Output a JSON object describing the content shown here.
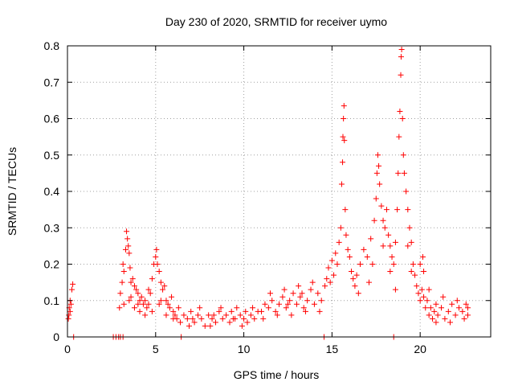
{
  "chart_data": {
    "type": "scatter",
    "title": "Day 230 of 2020, SRMTID for receiver uymo",
    "xlabel": "GPS time / hours",
    "ylabel": "SRMTID / TECUs",
    "xlim": [
      0,
      24
    ],
    "ylim": [
      0,
      0.8
    ],
    "xticks": [
      0,
      5,
      10,
      15,
      20
    ],
    "yticks": [
      0,
      0.1,
      0.2,
      0.3,
      0.4,
      0.5,
      0.6,
      0.7,
      0.8
    ],
    "xtick_labels": [
      "0",
      "5",
      "10",
      "15",
      "20"
    ],
    "ytick_labels": [
      "0",
      "0.1",
      "0.2",
      "0.3",
      "0.4",
      "0.5",
      "0.6",
      "0.7",
      "0.8"
    ],
    "grid": true,
    "marker": "+",
    "color": "#ff0000",
    "series": [
      {
        "name": "SRMTID",
        "points": [
          [
            0.05,
            0.05
          ],
          [
            0.1,
            0.08
          ],
          [
            0.15,
            0.1
          ],
          [
            0.2,
            0.09
          ],
          [
            0.25,
            0.13
          ],
          [
            0.3,
            0.145
          ],
          [
            0.15,
            0.07
          ],
          [
            0.08,
            0.06
          ],
          [
            0.35,
            0.0
          ],
          [
            2.6,
            0.0
          ],
          [
            2.75,
            0.0
          ],
          [
            2.9,
            0.0
          ],
          [
            3.0,
            0.0
          ],
          [
            3.15,
            0.0
          ],
          [
            6.45,
            0.0
          ],
          [
            14.55,
            0.0
          ],
          [
            18.5,
            0.0
          ],
          [
            2.95,
            0.08
          ],
          [
            3.0,
            0.12
          ],
          [
            3.1,
            0.15
          ],
          [
            3.15,
            0.2
          ],
          [
            3.2,
            0.18
          ],
          [
            3.3,
            0.24
          ],
          [
            3.35,
            0.29
          ],
          [
            3.4,
            0.27
          ],
          [
            3.45,
            0.25
          ],
          [
            3.5,
            0.23
          ],
          [
            3.55,
            0.19
          ],
          [
            3.6,
            0.15
          ],
          [
            3.7,
            0.16
          ],
          [
            3.8,
            0.14
          ],
          [
            3.9,
            0.13
          ],
          [
            4.0,
            0.12
          ],
          [
            4.1,
            0.1
          ],
          [
            4.2,
            0.11
          ],
          [
            4.3,
            0.09
          ],
          [
            4.4,
            0.1
          ],
          [
            4.5,
            0.08
          ],
          [
            4.6,
            0.09
          ],
          [
            4.7,
            0.12
          ],
          [
            4.8,
            0.16
          ],
          [
            4.9,
            0.2
          ],
          [
            5.0,
            0.22
          ],
          [
            5.05,
            0.24
          ],
          [
            5.1,
            0.2
          ],
          [
            5.2,
            0.18
          ],
          [
            5.3,
            0.15
          ],
          [
            5.4,
            0.13
          ],
          [
            5.5,
            0.14
          ],
          [
            5.6,
            0.1
          ],
          [
            5.7,
            0.09
          ],
          [
            5.8,
            0.08
          ],
          [
            5.9,
            0.11
          ],
          [
            6.0,
            0.07
          ],
          [
            6.1,
            0.06
          ],
          [
            3.2,
            0.09
          ],
          [
            3.5,
            0.1
          ],
          [
            3.8,
            0.08
          ],
          [
            4.1,
            0.07
          ],
          [
            4.4,
            0.06
          ],
          [
            4.8,
            0.07
          ],
          [
            5.2,
            0.09
          ],
          [
            5.6,
            0.06
          ],
          [
            6.0,
            0.05
          ],
          [
            3.6,
            0.11
          ],
          [
            4.0,
            0.09
          ],
          [
            4.6,
            0.13
          ],
          [
            5.3,
            0.1
          ],
          [
            6.2,
            0.05
          ],
          [
            6.4,
            0.04
          ],
          [
            6.6,
            0.06
          ],
          [
            6.8,
            0.05
          ],
          [
            7.0,
            0.07
          ],
          [
            7.2,
            0.04
          ],
          [
            7.4,
            0.06
          ],
          [
            7.6,
            0.05
          ],
          [
            7.8,
            0.03
          ],
          [
            8.0,
            0.06
          ],
          [
            8.2,
            0.05
          ],
          [
            8.4,
            0.04
          ],
          [
            8.6,
            0.07
          ],
          [
            8.8,
            0.05
          ],
          [
            9.0,
            0.06
          ],
          [
            9.2,
            0.04
          ],
          [
            9.4,
            0.05
          ],
          [
            9.6,
            0.08
          ],
          [
            9.8,
            0.06
          ],
          [
            10.0,
            0.05
          ],
          [
            10.2,
            0.04
          ],
          [
            10.4,
            0.06
          ],
          [
            10.6,
            0.05
          ],
          [
            10.8,
            0.07
          ],
          [
            6.3,
            0.08
          ],
          [
            6.9,
            0.03
          ],
          [
            7.5,
            0.08
          ],
          [
            8.1,
            0.03
          ],
          [
            8.7,
            0.08
          ],
          [
            9.3,
            0.07
          ],
          [
            9.9,
            0.03
          ],
          [
            10.5,
            0.08
          ],
          [
            7.1,
            0.05
          ],
          [
            8.3,
            0.06
          ],
          [
            9.5,
            0.05
          ],
          [
            10.1,
            0.07
          ],
          [
            11.0,
            0.07
          ],
          [
            11.2,
            0.09
          ],
          [
            11.4,
            0.08
          ],
          [
            11.6,
            0.1
          ],
          [
            11.8,
            0.07
          ],
          [
            12.0,
            0.09
          ],
          [
            12.2,
            0.11
          ],
          [
            12.4,
            0.08
          ],
          [
            12.6,
            0.1
          ],
          [
            12.8,
            0.12
          ],
          [
            13.0,
            0.09
          ],
          [
            13.2,
            0.11
          ],
          [
            13.4,
            0.08
          ],
          [
            13.6,
            0.1
          ],
          [
            13.8,
            0.13
          ],
          [
            14.0,
            0.09
          ],
          [
            14.2,
            0.12
          ],
          [
            14.4,
            0.1
          ],
          [
            14.6,
            0.14
          ],
          [
            11.1,
            0.05
          ],
          [
            11.5,
            0.12
          ],
          [
            11.9,
            0.06
          ],
          [
            12.3,
            0.13
          ],
          [
            12.7,
            0.06
          ],
          [
            13.1,
            0.14
          ],
          [
            13.5,
            0.07
          ],
          [
            13.9,
            0.15
          ],
          [
            14.3,
            0.07
          ],
          [
            12.5,
            0.09
          ],
          [
            13.3,
            0.12
          ],
          [
            14.7,
            0.16
          ],
          [
            14.8,
            0.19
          ],
          [
            14.9,
            0.15
          ],
          [
            15.0,
            0.21
          ],
          [
            15.1,
            0.17
          ],
          [
            15.2,
            0.23
          ],
          [
            15.3,
            0.2
          ],
          [
            15.4,
            0.26
          ],
          [
            15.5,
            0.3
          ],
          [
            15.55,
            0.42
          ],
          [
            15.6,
            0.48
          ],
          [
            15.62,
            0.55
          ],
          [
            15.65,
            0.6
          ],
          [
            15.68,
            0.635
          ],
          [
            15.7,
            0.54
          ],
          [
            15.75,
            0.35
          ],
          [
            15.8,
            0.28
          ],
          [
            15.9,
            0.24
          ],
          [
            16.0,
            0.22
          ],
          [
            16.1,
            0.18
          ],
          [
            16.2,
            0.16
          ],
          [
            16.3,
            0.14
          ],
          [
            16.4,
            0.17
          ],
          [
            16.6,
            0.2
          ],
          [
            16.8,
            0.24
          ],
          [
            17.0,
            0.22
          ],
          [
            17.2,
            0.27
          ],
          [
            17.4,
            0.32
          ],
          [
            17.5,
            0.38
          ],
          [
            17.55,
            0.45
          ],
          [
            17.6,
            0.5
          ],
          [
            17.65,
            0.47
          ],
          [
            17.7,
            0.42
          ],
          [
            17.8,
            0.36
          ],
          [
            17.9,
            0.32
          ],
          [
            18.0,
            0.3
          ],
          [
            18.1,
            0.35
          ],
          [
            18.2,
            0.28
          ],
          [
            18.3,
            0.25
          ],
          [
            18.4,
            0.22
          ],
          [
            18.5,
            0.2
          ],
          [
            18.6,
            0.26
          ],
          [
            18.7,
            0.35
          ],
          [
            18.75,
            0.45
          ],
          [
            18.8,
            0.55
          ],
          [
            18.85,
            0.62
          ],
          [
            18.9,
            0.72
          ],
          [
            18.92,
            0.77
          ],
          [
            18.95,
            0.79
          ],
          [
            19.0,
            0.6
          ],
          [
            19.05,
            0.5
          ],
          [
            19.1,
            0.45
          ],
          [
            19.2,
            0.4
          ],
          [
            19.3,
            0.35
          ],
          [
            19.4,
            0.3
          ],
          [
            19.5,
            0.26
          ],
          [
            19.6,
            0.2
          ],
          [
            16.5,
            0.12
          ],
          [
            17.1,
            0.15
          ],
          [
            17.3,
            0.2
          ],
          [
            17.9,
            0.25
          ],
          [
            18.3,
            0.18
          ],
          [
            18.6,
            0.13
          ],
          [
            19.3,
            0.25
          ],
          [
            19.5,
            0.18
          ],
          [
            19.7,
            0.17
          ],
          [
            19.8,
            0.14
          ],
          [
            19.9,
            0.12
          ],
          [
            20.0,
            0.1
          ],
          [
            20.1,
            0.13
          ],
          [
            20.2,
            0.11
          ],
          [
            20.3,
            0.08
          ],
          [
            20.4,
            0.1
          ],
          [
            20.5,
            0.06
          ],
          [
            20.6,
            0.08
          ],
          [
            20.7,
            0.05
          ],
          [
            20.8,
            0.07
          ],
          [
            20.9,
            0.09
          ],
          [
            21.0,
            0.06
          ],
          [
            21.2,
            0.08
          ],
          [
            21.4,
            0.05
          ],
          [
            21.6,
            0.07
          ],
          [
            21.8,
            0.09
          ],
          [
            22.0,
            0.06
          ],
          [
            22.2,
            0.08
          ],
          [
            22.4,
            0.07
          ],
          [
            22.6,
            0.09
          ],
          [
            22.7,
            0.06
          ],
          [
            20.0,
            0.2
          ],
          [
            20.15,
            0.22
          ],
          [
            20.2,
            0.18
          ],
          [
            20.5,
            0.13
          ],
          [
            20.9,
            0.04
          ],
          [
            21.3,
            0.11
          ],
          [
            21.7,
            0.04
          ],
          [
            22.1,
            0.1
          ],
          [
            22.5,
            0.05
          ],
          [
            22.7,
            0.08
          ]
        ]
      }
    ]
  }
}
